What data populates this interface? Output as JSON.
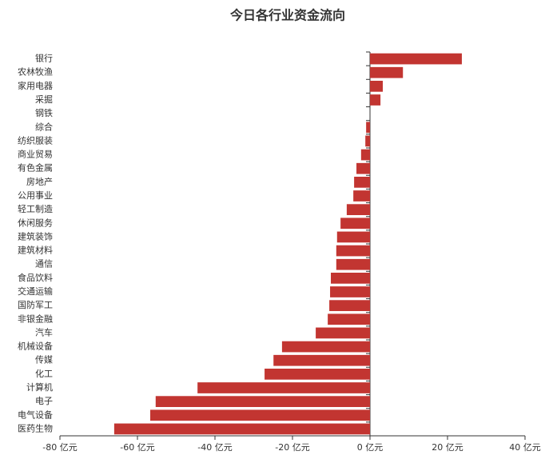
{
  "chart_data": {
    "type": "hbar",
    "title": "今日各行业资金流向",
    "categories": [
      "银行",
      "农林牧渔",
      "家用电器",
      "采掘",
      "钢铁",
      "综合",
      "纺织服装",
      "商业贸易",
      "有色金属",
      "房地产",
      "公用事业",
      "轻工制造",
      "休闲服务",
      "建筑装饰",
      "建筑材料",
      "通信",
      "食品饮料",
      "交通运输",
      "国防军工",
      "非银金融",
      "汽车",
      "机械设备",
      "传媒",
      "化工",
      "计算机",
      "电子",
      "电气设备",
      "医药生物"
    ],
    "values": [
      23.7,
      8.5,
      3.3,
      2.7,
      0,
      -1.0,
      -1.2,
      -2.3,
      -3.5,
      -4.1,
      -4.3,
      -6.0,
      -7.6,
      -8.5,
      -8.7,
      -8.7,
      -10.1,
      -10.3,
      -10.5,
      -10.9,
      -14.0,
      -22.7,
      -24.9,
      -27.2,
      -44.5,
      -55.3,
      -56.7,
      -66.0
    ],
    "color": "#c23531",
    "xlim": [
      -80,
      40
    ],
    "xticks": [
      {
        "value": -80,
        "label": "-80 亿元"
      },
      {
        "value": -60,
        "label": "-60 亿元"
      },
      {
        "value": -40,
        "label": "-40 亿元"
      },
      {
        "value": -20,
        "label": "-20 亿元"
      },
      {
        "value": 0,
        "label": "0 亿元"
      },
      {
        "value": 20,
        "label": "20 亿元"
      },
      {
        "value": 40,
        "label": "40 亿元"
      }
    ]
  }
}
